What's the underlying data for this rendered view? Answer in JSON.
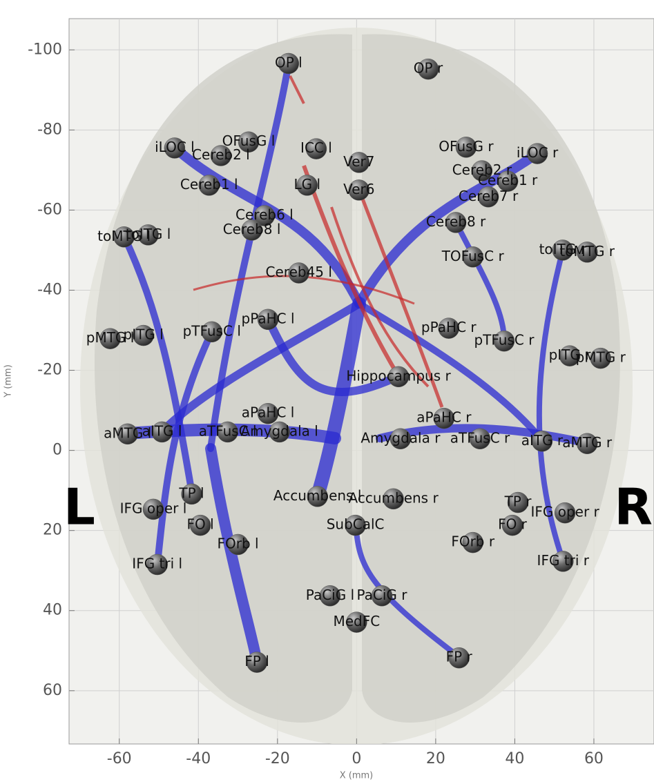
{
  "chart_data": {
    "type": "scatter",
    "x_label": "X (mm)",
    "y_label": "Y (mm)",
    "annotations": [
      "L",
      "R"
    ],
    "color": "#5a5a5a",
    "grid": true,
    "y_inverted": true,
    "xlim": [
      -72.7,
      75.2
    ],
    "ylim": [
      -107.8,
      73.3
    ],
    "xticks": [
      -60,
      -40,
      -20,
      0,
      20,
      40,
      60
    ],
    "yticks": [
      -100,
      -80,
      -60,
      -40,
      -20,
      0,
      20,
      40,
      60
    ],
    "point_labels": [
      "OP l",
      "OP r",
      "OFusG l",
      "OFusG r",
      "iLOC l",
      "iLOC r",
      "Cereb2 l",
      "Cereb2 r",
      "Cereb1 l",
      "Cereb1 r",
      "ICC l",
      "Ver7",
      "Ver6",
      "LG l",
      "Cereb6 l",
      "Cereb8 l",
      "Cereb7 r",
      "Cereb8 r",
      "toMTG l",
      "toITG l",
      "toITG r",
      "toMTG r",
      "TOFusC r",
      "Cereb45 l",
      "pPaHC l",
      "pPaHC r",
      "pTFusC l",
      "pTFusC r",
      "pITG l",
      "pMTG l",
      "pITG r",
      "pMTG r",
      "Hippocampus r",
      "aPaHC l",
      "aPaHC r",
      "aITG l",
      "aMTG l",
      "aTFusC l",
      "aTFusC r",
      "Amygdala l",
      "Amygdala r",
      "aITG r",
      "aMTG r",
      "TP l",
      "TP r",
      "IFG oper l",
      "IFG oper r",
      "FO l",
      "FO r",
      "Accumbens l",
      "Accumbens r",
      "SubCalC",
      "FOrb l",
      "FOrb r",
      "IFG tri l",
      "IFG tri r",
      "PaCiG l",
      "PaCiG r",
      "MedFC",
      "FP l",
      "FP r"
    ],
    "x": [
      -17.2,
      18.1,
      -27.3,
      27.7,
      -46.0,
      45.7,
      -34.3,
      31.7,
      -37.3,
      38.2,
      -10.2,
      0.6,
      0.6,
      -12.5,
      -23.3,
      -26.5,
      33.3,
      25.1,
      -58.8,
      -52.7,
      52.1,
      58.3,
      29.4,
      -14.6,
      -22.4,
      23.3,
      -36.6,
      37.3,
      -53.9,
      -62.3,
      53.9,
      61.7,
      10.6,
      -22.4,
      22.1,
      -49.2,
      -57.9,
      -32.6,
      31.2,
      -19.5,
      11.1,
      46.9,
      58.3,
      -41.7,
      40.8,
      -51.4,
      52.7,
      -39.5,
      39.4,
      -9.9,
      9.3,
      -0.3,
      -30.0,
      29.4,
      -50.4,
      52.2,
      -6.7,
      6.4,
      0,
      -25.2,
      25.9
    ],
    "values": [
      -96.6,
      -95.2,
      -77.0,
      -75.7,
      -75.5,
      -74.1,
      -73.6,
      -69.8,
      -66.2,
      -67.2,
      -75.3,
      -71.9,
      -65.0,
      -66.2,
      -58.6,
      -55.0,
      -63.3,
      -56.9,
      -53.3,
      -53.8,
      -50.0,
      -49.5,
      -48.3,
      -44.3,
      -32.7,
      -30.5,
      -29.6,
      -27.3,
      -28.7,
      -27.9,
      -23.6,
      -23.0,
      -18.4,
      -9.2,
      -8.0,
      -4.6,
      -4.1,
      -4.6,
      -2.9,
      -4.6,
      -2.9,
      -2.3,
      -1.7,
      10.9,
      13.0,
      14.7,
      15.6,
      18.7,
      18.7,
      11.5,
      12.1,
      18.7,
      23.5,
      23.0,
      28.5,
      27.7,
      36.3,
      36.3,
      42.9,
      52.9,
      51.8
    ]
  }
}
